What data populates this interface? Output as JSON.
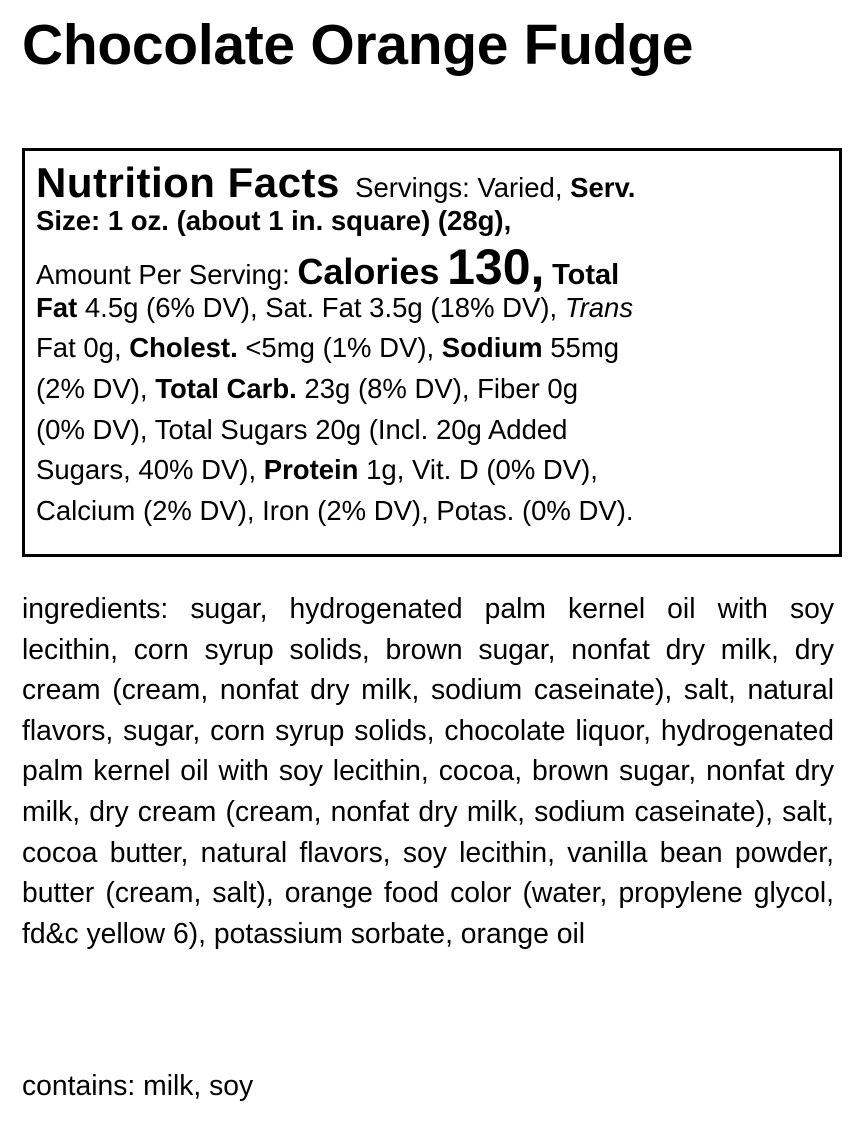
{
  "title": "Chocolate Orange Fudge",
  "nutrition": {
    "heading": "Nutrition Facts",
    "servings": "Servings: Varied,",
    "serv_size_label": "Serv. Size: 1 oz. (about 1 in. square) (28g),",
    "serv_size_label_a": "Serv.",
    "serv_size_label_b": "Size: 1 oz. (about 1 in. square) (28g),",
    "amount_per_serving": "Amount Per Serving:",
    "calories_label": "Calories",
    "calories_value": "130,",
    "total_fat_label_a": "Total",
    "total_fat_label_b": "Fat",
    "total_fat_value": "4.5g (6% DV), Sat. Fat 3.5g (18% DV),",
    "trans_label": "Trans",
    "trans_value": "Fat 0g,",
    "cholest_label": "Cholest.",
    "cholest_value": "<5mg (1% DV),",
    "sodium_label": "Sodium",
    "sodium_value_a": "55mg",
    "sodium_value_b": "(2% DV),",
    "carb_label": "Total Carb.",
    "carb_value_a": "23g (8% DV), Fiber 0g",
    "carb_value_b": "(0% DV), Total Sugars 20g (Incl. 20g Added",
    "carb_value_c": "Sugars, 40% DV),",
    "protein_label": "Protein",
    "protein_value": "1g, Vit. D (0% DV),",
    "minerals": "Calcium (2% DV), Iron (2% DV), Potas. (0% DV)."
  },
  "ingredients": "ingredients: sugar, hydrogenated palm kernel oil with soy lecithin, corn syrup solids, brown sugar, nonfat dry milk, dry cream (cream, nonfat dry milk, sodium caseinate), salt, natural flavors, sugar, corn syrup solids, chocolate liquor, hydrogenated palm kernel oil with soy lecithin, cocoa, brown sugar, nonfat dry milk, dry cream (cream, nonfat dry milk, sodium caseinate), salt, cocoa butter, natural flavors, soy lecithin, vanilla bean powder, butter (cream, salt), orange food color (water, propylene glycol, fd&c yellow 6), potassium sorbate, orange oil",
  "contains": "contains: milk, soy"
}
